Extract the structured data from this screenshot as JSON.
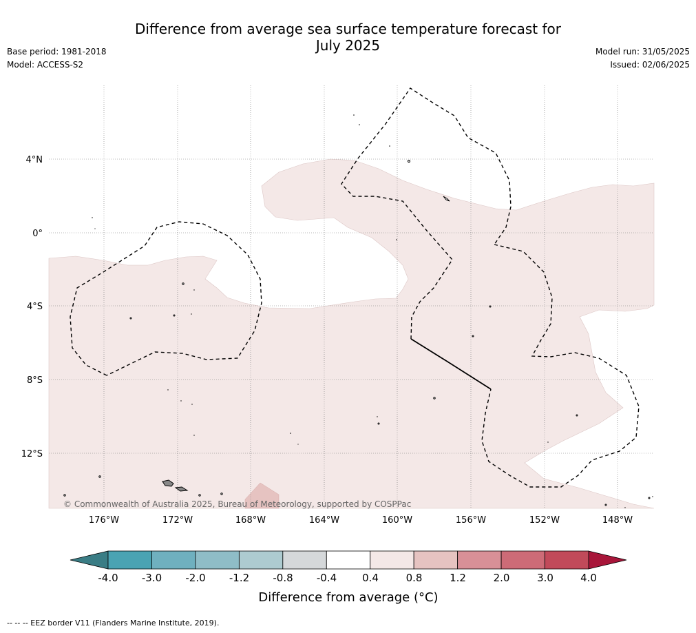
{
  "header": {
    "title_line1": "Difference from average sea surface temperature forecast for",
    "title_line2": "July 2025",
    "base_period": "Base period: 1981-2018",
    "model": "Model: ACCESS-S2",
    "model_run": "Model run: 31/05/2025",
    "issued": "Issued: 02/06/2025"
  },
  "map": {
    "copyright": "© Commonwealth of Australia 2025, Bureau of Meteorology, supported by COSPPac",
    "lat_labels": [
      "4°N",
      "0°",
      "4°S",
      "8°S",
      "12°S"
    ],
    "lon_labels": [
      "176°W",
      "172°W",
      "168°W",
      "164°W",
      "160°W",
      "156°W",
      "152°W",
      "148°W"
    ],
    "anomaly_fill_color": "#f4e8e7",
    "warm_patch_color": "#e6c3c1"
  },
  "colorbar": {
    "title": "Difference from average (°C)",
    "tick_labels": [
      "-4.0",
      "-3.0",
      "-2.0",
      "-1.2",
      "-0.8",
      "-0.4",
      "0.4",
      "0.8",
      "1.2",
      "2.0",
      "3.0",
      "4.0"
    ],
    "low_extend_color": "#3a7d85",
    "high_extend_color": "#a8163a",
    "bins": [
      {
        "range": "-4.0 to -3.0",
        "color": "#4aa3b3"
      },
      {
        "range": "-3.0 to -2.0",
        "color": "#6fb0bf"
      },
      {
        "range": "-2.0 to -1.2",
        "color": "#8fbdc7"
      },
      {
        "range": "-1.2 to -0.8",
        "color": "#adcbd0"
      },
      {
        "range": "-0.8 to -0.4",
        "color": "#d5d8da"
      },
      {
        "range": "-0.4 to 0.4",
        "color": "#ffffff"
      },
      {
        "range": "0.4 to 0.8",
        "color": "#f4e8e7"
      },
      {
        "range": "0.8 to 1.2",
        "color": "#e6c3c1"
      },
      {
        "range": "1.2 to 2.0",
        "color": "#d89097"
      },
      {
        "range": "2.0 to 3.0",
        "color": "#cd6b77"
      },
      {
        "range": "3.0 to 4.0",
        "color": "#c14a5a"
      }
    ]
  },
  "footer": {
    "eez_note": "-- -- -- EEZ border V11 (Flanders Marine Institute, 2019)."
  }
}
